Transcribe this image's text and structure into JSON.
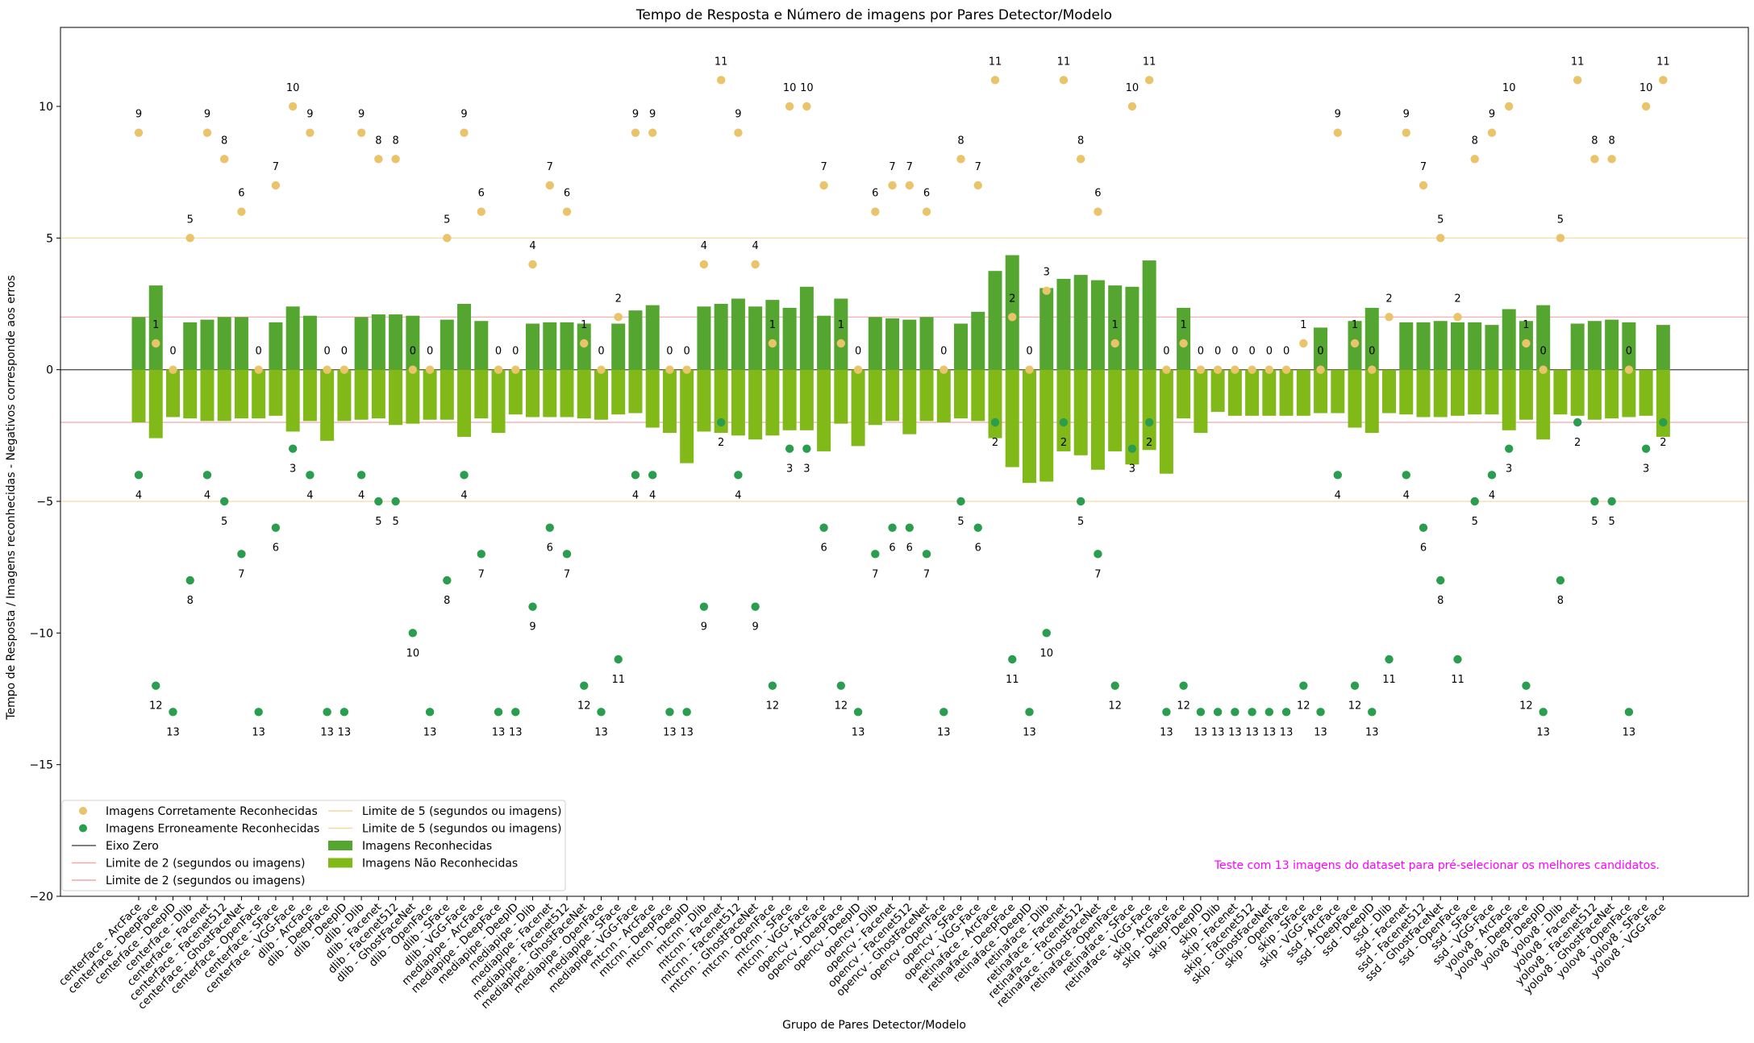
{
  "chart_data": {
    "type": "bar",
    "title": "Tempo de Resposta e Número de imagens por Pares Detector/Modelo",
    "xlabel": "Grupo de Pares Detector/Modelo",
    "ylabel": "Tempo de Resposta / Imagens reconhecidas - Negativos corresponde aos erros",
    "ylim": [
      -20,
      13
    ],
    "yticks": [
      -20,
      -15,
      -10,
      -5,
      0,
      5,
      10
    ],
    "grid": false,
    "legend_position": "lower-left",
    "annotation": "Teste com 13 imagens do dataset para pré-selecionar os melhores candidatos.",
    "categories": [
      "centerface - ArcFace",
      "centerface - DeepFace",
      "centerface - DeepID",
      "centerface - Dlib",
      "centerface - Facenet",
      "centerface - Facenet512",
      "centerface - GhostFaceNet",
      "centerface - OpenFace",
      "centerface - SFace",
      "centerface - VGG-Face",
      "dlib - ArcFace",
      "dlib - DeepFace",
      "dlib - DeepID",
      "dlib - Dlib",
      "dlib - Facenet",
      "dlib - Facenet512",
      "dlib - GhostFaceNet",
      "dlib - OpenFace",
      "dlib - SFace",
      "dlib - VGG-Face",
      "mediapipe - ArcFace",
      "mediapipe - DeepFace",
      "mediapipe - DeepID",
      "mediapipe - Dlib",
      "mediapipe - Facenet",
      "mediapipe - Facenet512",
      "mediapipe - GhostFaceNet",
      "mediapipe - OpenFace",
      "mediapipe - SFace",
      "mediapipe - VGG-Face",
      "mtcnn - ArcFace",
      "mtcnn - DeepFace",
      "mtcnn - DeepID",
      "mtcnn - Dlib",
      "mtcnn - Facenet",
      "mtcnn - Facenet512",
      "mtcnn - GhostFaceNet",
      "mtcnn - OpenFace",
      "mtcnn - SFace",
      "mtcnn - VGG-Face",
      "opencv - ArcFace",
      "opencv - DeepFace",
      "opencv - DeepID",
      "opencv - Dlib",
      "opencv - Facenet",
      "opencv - Facenet512",
      "opencv - GhostFaceNet",
      "opencv - OpenFace",
      "opencv - SFace",
      "opencv - VGG-Face",
      "retinaface - ArcFace",
      "retinaface - DeepFace",
      "retinaface - DeepID",
      "retinaface - Dlib",
      "retinaface - Facenet",
      "retinaface - Facenet512",
      "retinaface - GhostFaceNet",
      "retinaface - OpenFace",
      "retinaface - SFace",
      "retinaface - VGG-Face",
      "skip - ArcFace",
      "skip - DeepFace",
      "skip - DeepID",
      "skip - Dlib",
      "skip - Facenet",
      "skip - Facenet512",
      "skip - GhostFaceNet",
      "skip - OpenFace",
      "skip - SFace",
      "skip - VGG-Face",
      "ssd - ArcFace",
      "ssd - DeepFace",
      "ssd - DeepID",
      "ssd - Dlib",
      "ssd - Facenet",
      "ssd - Facenet512",
      "ssd - GhostFaceNet",
      "ssd - OpenFace",
      "ssd - SFace",
      "ssd - VGG-Face",
      "yolov8 - ArcFace",
      "yolov8 - DeepFace",
      "yolov8 - DeepID",
      "yolov8 - Dlib",
      "yolov8 - Facenet",
      "yolov8 - Facenet512",
      "yolov8 - GhostFaceNet",
      "yolov8 - OpenFace",
      "yolov8 - SFace",
      "yolov8 - VGG-Face"
    ],
    "series": [
      {
        "name": "Imagens Reconhecidas",
        "kind": "bar",
        "color": "#55a630",
        "values": [
          2.0,
          3.2,
          0.0,
          1.8,
          1.9,
          2.0,
          2.0,
          0.0,
          1.8,
          2.4,
          2.05,
          0.0,
          0.0,
          2.0,
          2.1,
          2.1,
          2.05,
          0.0,
          1.9,
          2.5,
          1.85,
          0.0,
          0.0,
          1.75,
          1.8,
          1.8,
          1.75,
          0.0,
          1.75,
          2.25,
          2.45,
          0.0,
          0.0,
          2.4,
          2.5,
          2.7,
          2.4,
          2.65,
          2.35,
          3.15,
          2.05,
          2.7,
          0.0,
          2.0,
          1.95,
          1.9,
          2.0,
          0.0,
          1.75,
          2.2,
          3.75,
          4.35,
          0.0,
          3.1,
          3.45,
          3.6,
          3.4,
          3.2,
          3.15,
          4.15,
          0.0,
          2.35,
          0.0,
          0.0,
          0.0,
          0.0,
          0.0,
          0.0,
          0.0,
          1.6,
          0.0,
          1.85,
          2.35,
          0.0,
          1.8,
          1.8,
          1.85,
          1.8,
          1.8,
          1.7,
          2.3,
          1.85,
          2.45,
          0.0,
          1.75,
          1.85,
          1.9,
          1.8,
          0.0,
          1.7
        ]
      },
      {
        "name": "Imagens Não Reconhecidas",
        "kind": "bar",
        "color": "#80b918",
        "values": [
          -2.0,
          -2.6,
          -1.8,
          -1.85,
          -1.95,
          -1.95,
          -1.85,
          -1.85,
          -1.75,
          -2.35,
          -1.95,
          -2.7,
          -1.95,
          -1.9,
          -1.85,
          -2.1,
          -2.05,
          -1.9,
          -1.9,
          -2.55,
          -1.85,
          -2.4,
          -1.7,
          -1.8,
          -1.8,
          -1.8,
          -1.85,
          -1.9,
          -1.7,
          -1.65,
          -2.2,
          -2.4,
          -3.55,
          -2.35,
          -2.4,
          -2.5,
          -2.65,
          -2.5,
          -2.3,
          -2.3,
          -3.1,
          -2.05,
          -2.9,
          -2.1,
          -1.95,
          -2.45,
          -1.95,
          -2.0,
          -1.85,
          -1.95,
          -2.6,
          -3.7,
          -4.3,
          -4.25,
          -3.1,
          -3.25,
          -3.8,
          -3.1,
          -3.6,
          -3.05,
          -3.95,
          -1.85,
          -2.4,
          -1.6,
          -1.75,
          -1.75,
          -1.75,
          -1.75,
          -1.75,
          -1.65,
          -1.65,
          -2.2,
          -2.4,
          -1.65,
          -1.7,
          -1.8,
          -1.8,
          -1.75,
          -1.7,
          -1.7,
          -2.3,
          -1.9,
          -2.65,
          -1.7,
          -1.75,
          -1.9,
          -1.85,
          -1.8,
          -1.75,
          -2.55
        ]
      },
      {
        "name": "Imagens Corretamente Reconhecidas",
        "kind": "scatter",
        "color": "#e9c46a",
        "values": [
          9,
          1,
          0,
          5,
          9,
          8,
          6,
          0,
          7,
          10,
          9,
          0,
          0,
          9,
          8,
          8,
          0,
          0,
          5,
          9,
          6,
          0,
          0,
          4,
          7,
          6,
          1,
          0,
          2,
          9,
          9,
          0,
          0,
          4,
          11,
          9,
          4,
          1,
          10,
          10,
          7,
          1,
          0,
          6,
          7,
          7,
          6,
          0,
          8,
          7,
          11,
          2,
          0,
          3,
          11,
          8,
          6,
          1,
          10,
          11,
          0,
          1,
          0,
          0,
          0,
          0,
          0,
          0,
          1,
          0,
          9,
          1,
          0,
          2,
          9,
          7,
          5,
          2,
          8,
          9,
          10,
          1,
          0,
          5,
          11,
          8,
          8,
          0,
          10,
          11
        ]
      },
      {
        "name": "Imagens Erroneamente Reconhecidas",
        "kind": "scatter",
        "color": "#2a9d4f",
        "values": [
          -4,
          -12,
          -13,
          -8,
          -4,
          -5,
          -7,
          -13,
          -6,
          -3,
          -4,
          -13,
          -13,
          -4,
          -5,
          -5,
          -10,
          -13,
          -8,
          -4,
          -7,
          -13,
          -13,
          -9,
          -6,
          -7,
          -12,
          -13,
          -11,
          -4,
          -4,
          -13,
          -13,
          -9,
          -2,
          -4,
          -9,
          -12,
          -3,
          -3,
          -6,
          -12,
          -13,
          -7,
          -6,
          -6,
          -7,
          -13,
          -5,
          -6,
          -2,
          -11,
          -13,
          -10,
          -2,
          -5,
          -7,
          -12,
          -3,
          -2,
          -13,
          -12,
          -13,
          -13,
          -13,
          -13,
          -13,
          -13,
          -12,
          -13,
          -4,
          -12,
          -13,
          -11,
          -4,
          -6,
          -8,
          -11,
          -5,
          -4,
          -3,
          -12,
          -13,
          -8,
          -2,
          -5,
          -5,
          -13,
          -3,
          -2
        ]
      }
    ],
    "legend": {
      "entries": [
        {
          "label": "Imagens Corretamente Reconhecidas",
          "marker": "dot",
          "color": "#e9c46a"
        },
        {
          "label": "Imagens Erroneamente Reconhecidas",
          "marker": "dot",
          "color": "#2a9d4f"
        },
        {
          "label": "Eixo Zero",
          "marker": "line",
          "color": "#555555"
        },
        {
          "label": "Limite de 2 (segundos ou imagens)",
          "marker": "line",
          "color": "#f4a6a6"
        },
        {
          "label": "Limite de 2 (segundos ou imagens)",
          "marker": "line",
          "color": "#f4a6a6"
        },
        {
          "label": "Limite de 5 (segundos ou imagens)",
          "marker": "line",
          "color": "#f7d9a0"
        },
        {
          "label": "Limite de 5 (segundos ou imagens)",
          "marker": "line",
          "color": "#f7d9a0"
        },
        {
          "label": "Imagens Reconhecidas",
          "marker": "patch",
          "color": "#55a630"
        },
        {
          "label": "Imagens Não Reconhecidas",
          "marker": "patch",
          "color": "#80b918"
        }
      ]
    },
    "reference_lines": [
      {
        "name": "Eixo Zero",
        "y": 0,
        "color": "#555555"
      },
      {
        "name": "Limite de 2 (segundos ou imagens)",
        "y": 2,
        "color": "#f4a6a6"
      },
      {
        "name": "Limite de 2 (segundos ou imagens)",
        "y": -2,
        "color": "#f4a6a6"
      },
      {
        "name": "Limite de 5 (segundos ou imagens)",
        "y": 5,
        "color": "#f7d9a0"
      },
      {
        "name": "Limite de 5 (segundos ou imagens)",
        "y": -5,
        "color": "#f7d9a0"
      }
    ],
    "annotation_color": "#ff00ff"
  }
}
